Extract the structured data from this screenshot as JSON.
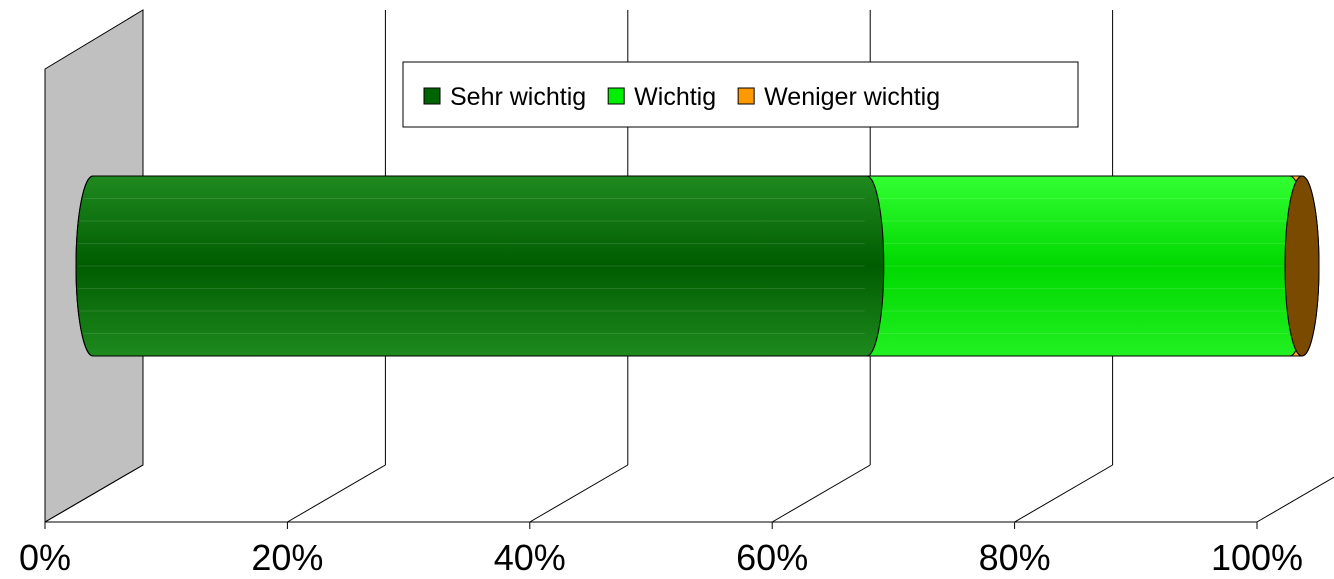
{
  "chart_data": {
    "type": "bar",
    "orientation": "horizontal",
    "stacked": true,
    "percent_stacked": true,
    "three_d": true,
    "shape": "cylinder",
    "categories": [
      ""
    ],
    "series": [
      {
        "name": "Sehr wichtig",
        "values": [
          64
        ],
        "color": "#006400"
      },
      {
        "name": "Wichtig",
        "values": [
          35
        ],
        "color": "#00ee00"
      },
      {
        "name": "Weniger wichtig",
        "values": [
          1
        ],
        "color": "#ff9900"
      }
    ],
    "xlim": [
      0,
      100
    ],
    "xticks": [
      "0%",
      "20%",
      "40%",
      "60%",
      "80%",
      "100%"
    ],
    "grid": true,
    "legend": "top",
    "title": "",
    "xlabel": "",
    "ylabel": ""
  }
}
